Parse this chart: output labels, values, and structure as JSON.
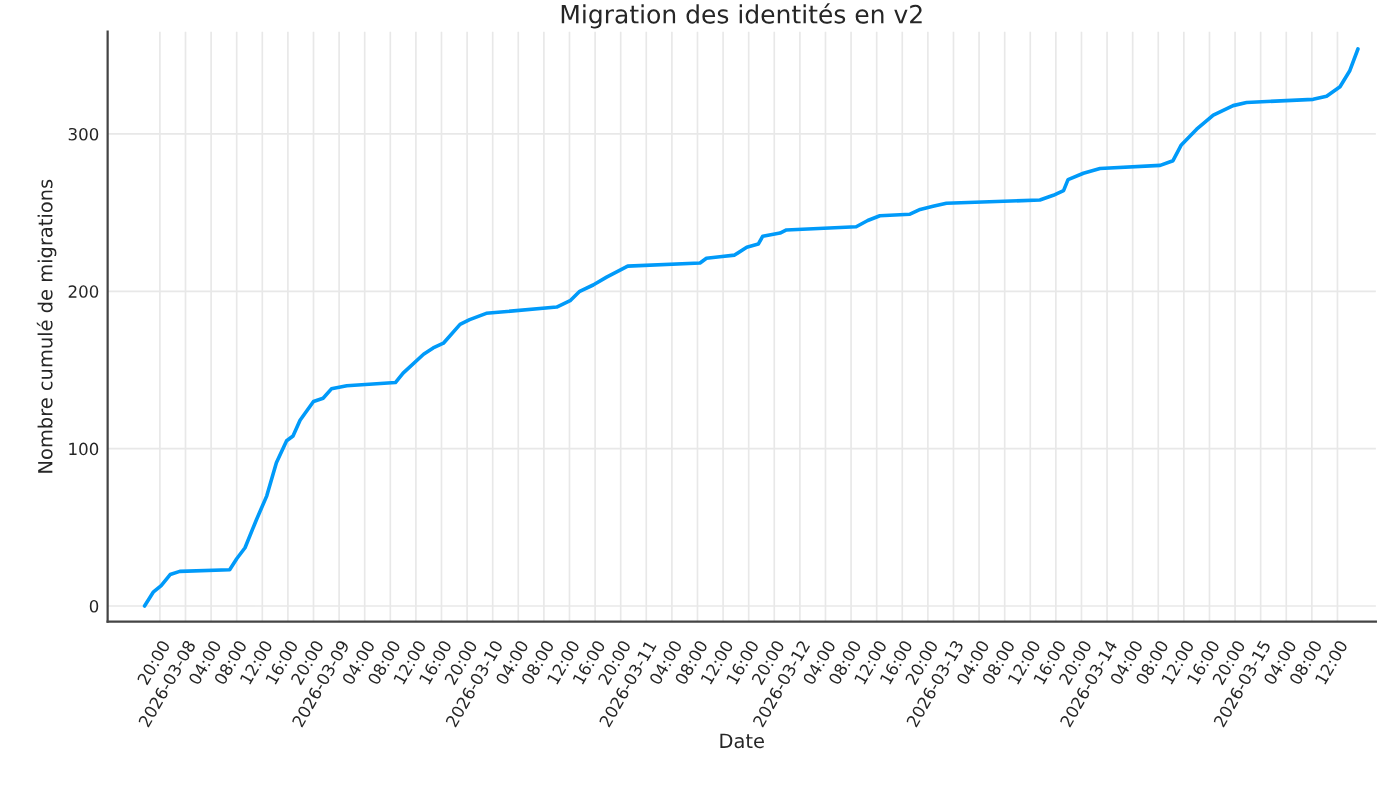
{
  "chart_data": {
    "type": "line",
    "title": "Migration des identités en v2",
    "xlabel": "Date",
    "ylabel": "Nombre cumulé de migrations",
    "x": [
      "2026-03-07T17:36",
      "2026-03-07T19:00",
      "2026-03-07T20:12",
      "2026-03-07T21:36",
      "2026-03-07T23:06",
      "2026-03-08T06:54",
      "2026-03-08T08:00",
      "2026-03-08T09:18",
      "2026-03-08T11:06",
      "2026-03-08T12:42",
      "2026-03-08T14:12",
      "2026-03-08T15:48",
      "2026-03-08T16:48",
      "2026-03-08T17:54",
      "2026-03-08T20:00",
      "2026-03-08T21:30",
      "2026-03-08T22:48",
      "2026-03-09T01:12",
      "2026-03-09T08:48",
      "2026-03-09T10:00",
      "2026-03-09T13:12",
      "2026-03-09T14:42",
      "2026-03-09T16:18",
      "2026-03-09T18:54",
      "2026-03-09T20:24",
      "2026-03-09T23:00",
      "2026-03-10T10:00",
      "2026-03-10T12:06",
      "2026-03-10T13:36",
      "2026-03-10T15:42",
      "2026-03-10T17:48",
      "2026-03-10T21:06",
      "2026-03-11T08:24",
      "2026-03-11T09:24",
      "2026-03-11T11:30",
      "2026-03-11T13:48",
      "2026-03-11T15:42",
      "2026-03-11T17:30",
      "2026-03-11T18:12",
      "2026-03-11T20:54",
      "2026-03-11T21:54",
      "2026-03-12T08:48",
      "2026-03-12T10:36",
      "2026-03-12T12:30",
      "2026-03-12T17:12",
      "2026-03-12T18:48",
      "2026-03-12T20:48",
      "2026-03-12T22:54",
      "2026-03-13T13:30",
      "2026-03-13T15:36",
      "2026-03-13T17:12",
      "2026-03-13T17:54",
      "2026-03-13T20:18",
      "2026-03-13T22:54",
      "2026-03-14T08:18",
      "2026-03-14T10:18",
      "2026-03-14T11:36",
      "2026-03-14T14:00",
      "2026-03-14T16:36",
      "2026-03-14T19:42",
      "2026-03-14T21:48",
      "2026-03-15T08:12",
      "2026-03-15T10:18",
      "2026-03-15T12:24",
      "2026-03-15T13:54",
      "2026-03-15T15:12"
    ],
    "series": [
      {
        "color": "#009af9",
        "values": [
          0,
          9,
          13,
          20,
          22,
          23,
          30,
          37,
          55,
          70,
          91,
          105,
          108,
          118,
          130,
          132,
          138,
          140,
          142,
          148,
          160,
          164,
          167,
          179,
          182,
          186,
          190,
          194,
          200,
          204,
          209,
          216,
          218,
          221,
          222,
          223,
          228,
          230,
          235,
          237,
          239,
          241,
          245,
          248,
          249,
          252,
          254,
          256,
          258,
          261,
          264,
          271,
          275,
          278,
          280,
          283,
          293,
          303,
          312,
          318,
          320,
          322,
          324,
          330,
          340,
          354
        ]
      }
    ],
    "xlim": [
      "2026-03-07T11:50",
      "2026-03-15T18:00"
    ],
    "xticks": [
      {
        "value": "2026-03-07T20:00",
        "label": "20:00"
      },
      {
        "value": "2026-03-08T00:00",
        "label": "2026-03-08"
      },
      {
        "value": "2026-03-08T04:00",
        "label": "04:00"
      },
      {
        "value": "2026-03-08T08:00",
        "label": "08:00"
      },
      {
        "value": "2026-03-08T12:00",
        "label": "12:00"
      },
      {
        "value": "2026-03-08T16:00",
        "label": "16:00"
      },
      {
        "value": "2026-03-08T20:00",
        "label": "20:00"
      },
      {
        "value": "2026-03-09T00:00",
        "label": "2026-03-09"
      },
      {
        "value": "2026-03-09T04:00",
        "label": "04:00"
      },
      {
        "value": "2026-03-09T08:00",
        "label": "08:00"
      },
      {
        "value": "2026-03-09T12:00",
        "label": "12:00"
      },
      {
        "value": "2026-03-09T16:00",
        "label": "16:00"
      },
      {
        "value": "2026-03-09T20:00",
        "label": "20:00"
      },
      {
        "value": "2026-03-10T00:00",
        "label": "2026-03-10"
      },
      {
        "value": "2026-03-10T04:00",
        "label": "04:00"
      },
      {
        "value": "2026-03-10T08:00",
        "label": "08:00"
      },
      {
        "value": "2026-03-10T12:00",
        "label": "12:00"
      },
      {
        "value": "2026-03-10T16:00",
        "label": "16:00"
      },
      {
        "value": "2026-03-10T20:00",
        "label": "20:00"
      },
      {
        "value": "2026-03-11T00:00",
        "label": "2026-03-11"
      },
      {
        "value": "2026-03-11T04:00",
        "label": "04:00"
      },
      {
        "value": "2026-03-11T08:00",
        "label": "08:00"
      },
      {
        "value": "2026-03-11T12:00",
        "label": "12:00"
      },
      {
        "value": "2026-03-11T16:00",
        "label": "16:00"
      },
      {
        "value": "2026-03-11T20:00",
        "label": "20:00"
      },
      {
        "value": "2026-03-12T00:00",
        "label": "2026-03-12"
      },
      {
        "value": "2026-03-12T04:00",
        "label": "04:00"
      },
      {
        "value": "2026-03-12T08:00",
        "label": "08:00"
      },
      {
        "value": "2026-03-12T12:00",
        "label": "12:00"
      },
      {
        "value": "2026-03-12T16:00",
        "label": "16:00"
      },
      {
        "value": "2026-03-12T20:00",
        "label": "20:00"
      },
      {
        "value": "2026-03-13T00:00",
        "label": "2026-03-13"
      },
      {
        "value": "2026-03-13T04:00",
        "label": "04:00"
      },
      {
        "value": "2026-03-13T08:00",
        "label": "08:00"
      },
      {
        "value": "2026-03-13T12:00",
        "label": "12:00"
      },
      {
        "value": "2026-03-13T16:00",
        "label": "16:00"
      },
      {
        "value": "2026-03-13T20:00",
        "label": "20:00"
      },
      {
        "value": "2026-03-14T00:00",
        "label": "2026-03-14"
      },
      {
        "value": "2026-03-14T04:00",
        "label": "04:00"
      },
      {
        "value": "2026-03-14T08:00",
        "label": "08:00"
      },
      {
        "value": "2026-03-14T12:00",
        "label": "12:00"
      },
      {
        "value": "2026-03-14T16:00",
        "label": "16:00"
      },
      {
        "value": "2026-03-14T20:00",
        "label": "20:00"
      },
      {
        "value": "2026-03-15T00:00",
        "label": "2026-03-15"
      },
      {
        "value": "2026-03-15T04:00",
        "label": "04:00"
      },
      {
        "value": "2026-03-15T08:00",
        "label": "08:00"
      },
      {
        "value": "2026-03-15T12:00",
        "label": "12:00"
      }
    ],
    "ylim": [
      -10,
      365
    ],
    "yticks": [
      0,
      100,
      200,
      300
    ],
    "grid": true,
    "legend": false,
    "marker": "none",
    "line_style": "solid"
  }
}
